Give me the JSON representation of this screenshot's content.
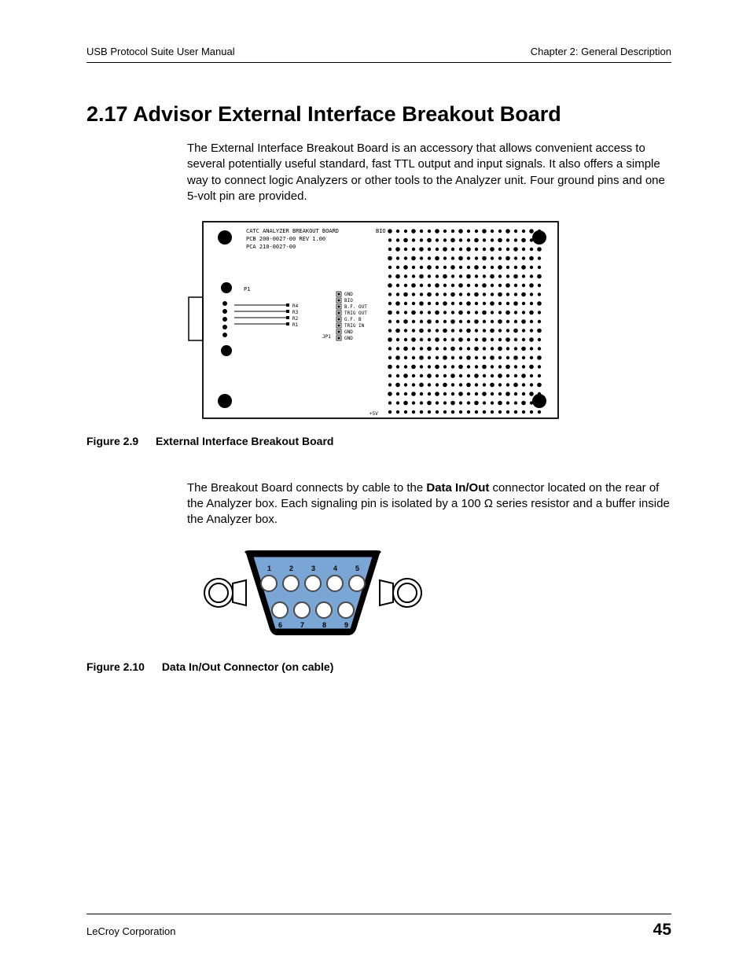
{
  "header": {
    "left": "USB Protocol Suite User Manual",
    "right": "Chapter 2: General Description"
  },
  "section": {
    "number": "2.17",
    "title": "Advisor External Interface Breakout Board"
  },
  "paragraph1": "The External Interface Breakout Board is an accessory that allows convenient access to several potentially useful standard, fast TTL output and input signals. It also offers a simple way to connect logic Analyzers or other tools to the Analyzer unit. Four ground pins and one 5-volt pin are provided.",
  "figure1": {
    "caption_num": "Figure 2.9",
    "caption_text": "External Interface Breakout Board",
    "board_labels": {
      "line1": "CATC ANALYZER BREAKOUT BOARD",
      "line2": "PCB 200-0027-00  REV 1.00",
      "line3": "PCA 210-0027-00",
      "bio": "BIO",
      "p1": "P1",
      "jp1": "JP1",
      "plus5v": "+5V",
      "r_labels": [
        "R4",
        "R3",
        "R2",
        "R1"
      ],
      "pin_labels": [
        "GND",
        "BIO",
        "B.F. OUT",
        "TRIG OUT",
        "G.F. B",
        "TRIG IN",
        "GND",
        "GND"
      ]
    },
    "style": {
      "border_color": "#000000",
      "bg_color": "#ffffff",
      "dot_color": "#000000",
      "text_color": "#000000",
      "grid": {
        "rows": 20,
        "cols": 20,
        "cell": 10,
        "dot_r": 2.2
      },
      "font_size_small": 7,
      "font_size_tiny": 6
    }
  },
  "paragraph2": {
    "pre": "The Breakout Board connects by cable to the ",
    "bold": "Data In/Out",
    "post": " connector located on the rear of the Analyzer box. Each signaling pin is isolated by a 100 Ω series resistor and a buffer inside the Analyzer box."
  },
  "figure2": {
    "caption_num": "Figure 2.10",
    "caption_text": "Data In/Out Connector (on cable)",
    "pins_top": [
      "1",
      "2",
      "3",
      "4",
      "5"
    ],
    "pins_bottom": [
      "6",
      "7",
      "8",
      "9"
    ],
    "style": {
      "shell_fill": "#7aa6d6",
      "shell_stroke": "#000000",
      "pin_fill": "#ffffff",
      "pin_stroke": "#4a4a4a",
      "num_color": "#000000",
      "screw_stroke": "#000000",
      "font_size": 9
    }
  },
  "footer": {
    "left": "LeCroy Corporation",
    "page": "45"
  }
}
